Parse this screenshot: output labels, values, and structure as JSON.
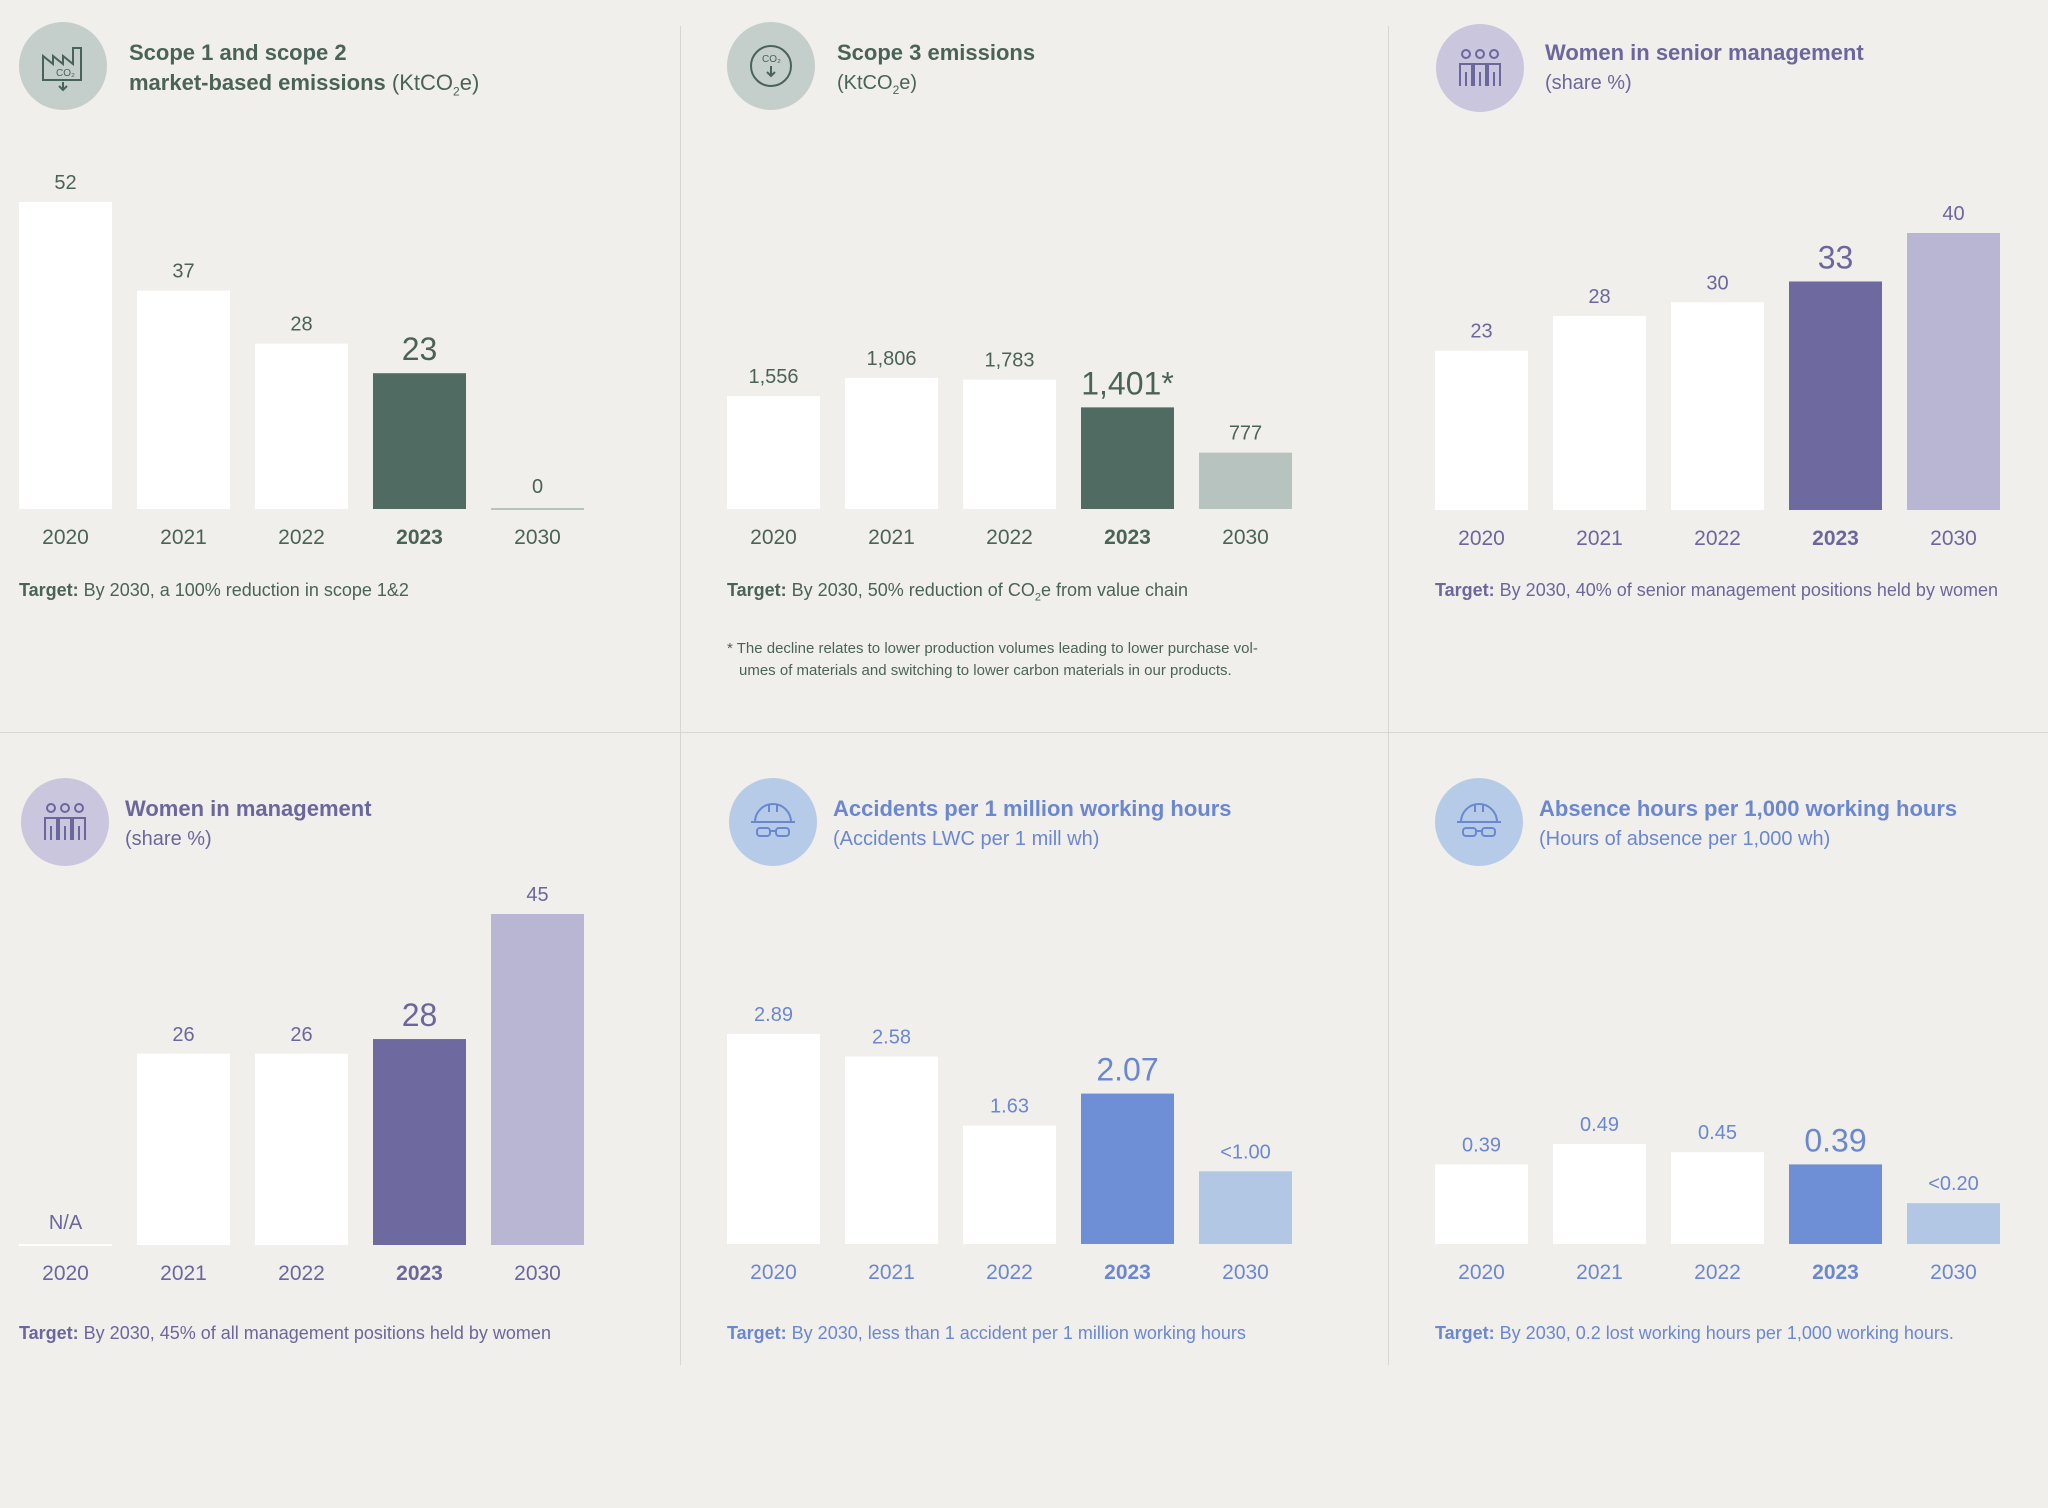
{
  "colors": {
    "background": "#f1efeb",
    "white_bar": "#ffffff",
    "green_dark": "#4f6b62",
    "green_light": "#b7c3bf",
    "green_text": "#4a6359",
    "green_icon_bg": "#c4cecb",
    "purple_dark": "#6e6aa0",
    "purple_light": "#b8b6d3",
    "purple_text": "#6b679c",
    "purple_icon_bg": "#c9c6dd",
    "blue_dark": "#6e8ed6",
    "blue_light": "#b1c7e4",
    "blue_text": "#6a87d0",
    "blue_icon_bg": "#b6cbe8"
  },
  "panels": [
    {
      "icon": "co2-factory-icon",
      "title": "Scope 1 and scope 2",
      "title2": "market-based emissions",
      "unit_prefix": "(KtCO",
      "unit_sub": "2",
      "unit_suffix": "e)",
      "target_label": "Target:",
      "target_text": " By 2030, a 100% reduction in scope 1&2",
      "chart_data": {
        "type": "bar",
        "categories": [
          "2020",
          "2021",
          "2022",
          "2023",
          "2030"
        ],
        "values": [
          52,
          37,
          28,
          23,
          0
        ],
        "labels": [
          "52",
          "37",
          "28",
          "23",
          "0"
        ],
        "highlight": "2023",
        "target": "2030"
      }
    },
    {
      "icon": "co2-cycle-icon",
      "title": "Scope 3 emissions",
      "unit_prefix": "(KtCO",
      "unit_sub": "2",
      "unit_suffix": "e)",
      "target_label": "Target:",
      "target_text_a": " By 2030, 50% reduction of CO",
      "target_sub": "2",
      "target_text_b": "e from value chain",
      "note_line1": "* The decline relates to lower production volumes leading to lower purchase vol-",
      "note_line2": "umes of materials and switching to lower carbon materials in our products.",
      "chart_data": {
        "type": "bar",
        "categories": [
          "2020",
          "2021",
          "2022",
          "2023",
          "2030"
        ],
        "values": [
          1556,
          1806,
          1783,
          1401,
          777
        ],
        "labels": [
          "1,556",
          "1,806",
          "1,783",
          "1,401*",
          "777"
        ],
        "highlight": "2023",
        "target": "2030"
      }
    },
    {
      "icon": "people-group-icon",
      "title": "Women in senior management",
      "subtitle": "(share %)",
      "target_label": "Target:",
      "target_text": " By 2030, 40% of senior management positions held by women",
      "chart_data": {
        "type": "bar",
        "categories": [
          "2020",
          "2021",
          "2022",
          "2023",
          "2030"
        ],
        "values": [
          23,
          28,
          30,
          33,
          40
        ],
        "labels": [
          "23",
          "28",
          "30",
          "33",
          "40"
        ],
        "highlight": "2023",
        "target": "2030"
      }
    },
    {
      "icon": "people-group-icon",
      "title": "Women in management",
      "subtitle": "(share %)",
      "target_label": "Target:",
      "target_text": " By 2030, 45% of all management positions held by women",
      "chart_data": {
        "type": "bar",
        "categories": [
          "2020",
          "2021",
          "2022",
          "2023",
          "2030"
        ],
        "values": [
          null,
          26,
          26,
          28,
          45
        ],
        "labels": [
          "N/A",
          "26",
          "26",
          "28",
          "45"
        ],
        "highlight": "2023",
        "target": "2030"
      }
    },
    {
      "icon": "safety-helmet-icon",
      "title": "Accidents per 1 million working hours",
      "subtitle": "(Accidents LWC per 1 mill wh)",
      "target_label": "Target:",
      "target_text": " By 2030, less than 1 accident per 1 million working hours",
      "chart_data": {
        "type": "bar",
        "categories": [
          "2020",
          "2021",
          "2022",
          "2023",
          "2030"
        ],
        "values": [
          2.89,
          2.58,
          1.63,
          2.07,
          1.0
        ],
        "labels": [
          "2.89",
          "2.58",
          "1.63",
          "2.07",
          "<1.00"
        ],
        "highlight": "2023",
        "target": "2030"
      }
    },
    {
      "icon": "safety-helmet-icon",
      "title": "Absence hours per 1,000 working hours",
      "subtitle": "(Hours of absence per 1,000 wh)",
      "target_label": "Target:",
      "target_text": " By 2030, 0.2 lost working hours per 1,000 working hours.",
      "chart_data": {
        "type": "bar",
        "categories": [
          "2020",
          "2021",
          "2022",
          "2023",
          "2030"
        ],
        "values": [
          0.39,
          0.49,
          0.45,
          0.39,
          0.2
        ],
        "labels": [
          "0.39",
          "0.49",
          "0.45",
          "0.39",
          "<0.20"
        ],
        "highlight": "2023",
        "target": "2030"
      }
    }
  ]
}
